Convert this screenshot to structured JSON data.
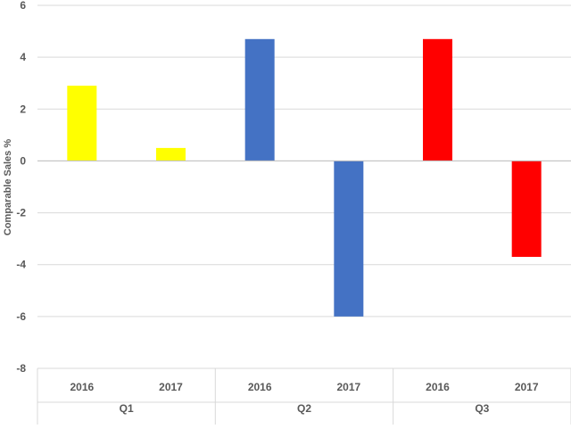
{
  "chart_data": {
    "type": "bar",
    "ylabel": "Comparable Sales %",
    "xlabel": "",
    "ylim": [
      -8,
      6
    ],
    "yticks": [
      -8,
      -6,
      -4,
      -2,
      0,
      2,
      4,
      6
    ],
    "grid": true,
    "legend": "none",
    "groups": [
      {
        "name": "Q1",
        "color": "#FFFF00",
        "bars": [
          {
            "label": "2016",
            "value": 2.9
          },
          {
            "label": "2017",
            "value": 0.5
          }
        ]
      },
      {
        "name": "Q2",
        "color": "#4472C4",
        "bars": [
          {
            "label": "2016",
            "value": 4.7
          },
          {
            "label": "2017",
            "value": -6.0
          }
        ]
      },
      {
        "name": "Q3",
        "color": "#FF0000",
        "bars": [
          {
            "label": "2016",
            "value": 4.7
          },
          {
            "label": "2017",
            "value": -3.7
          }
        ]
      }
    ]
  }
}
